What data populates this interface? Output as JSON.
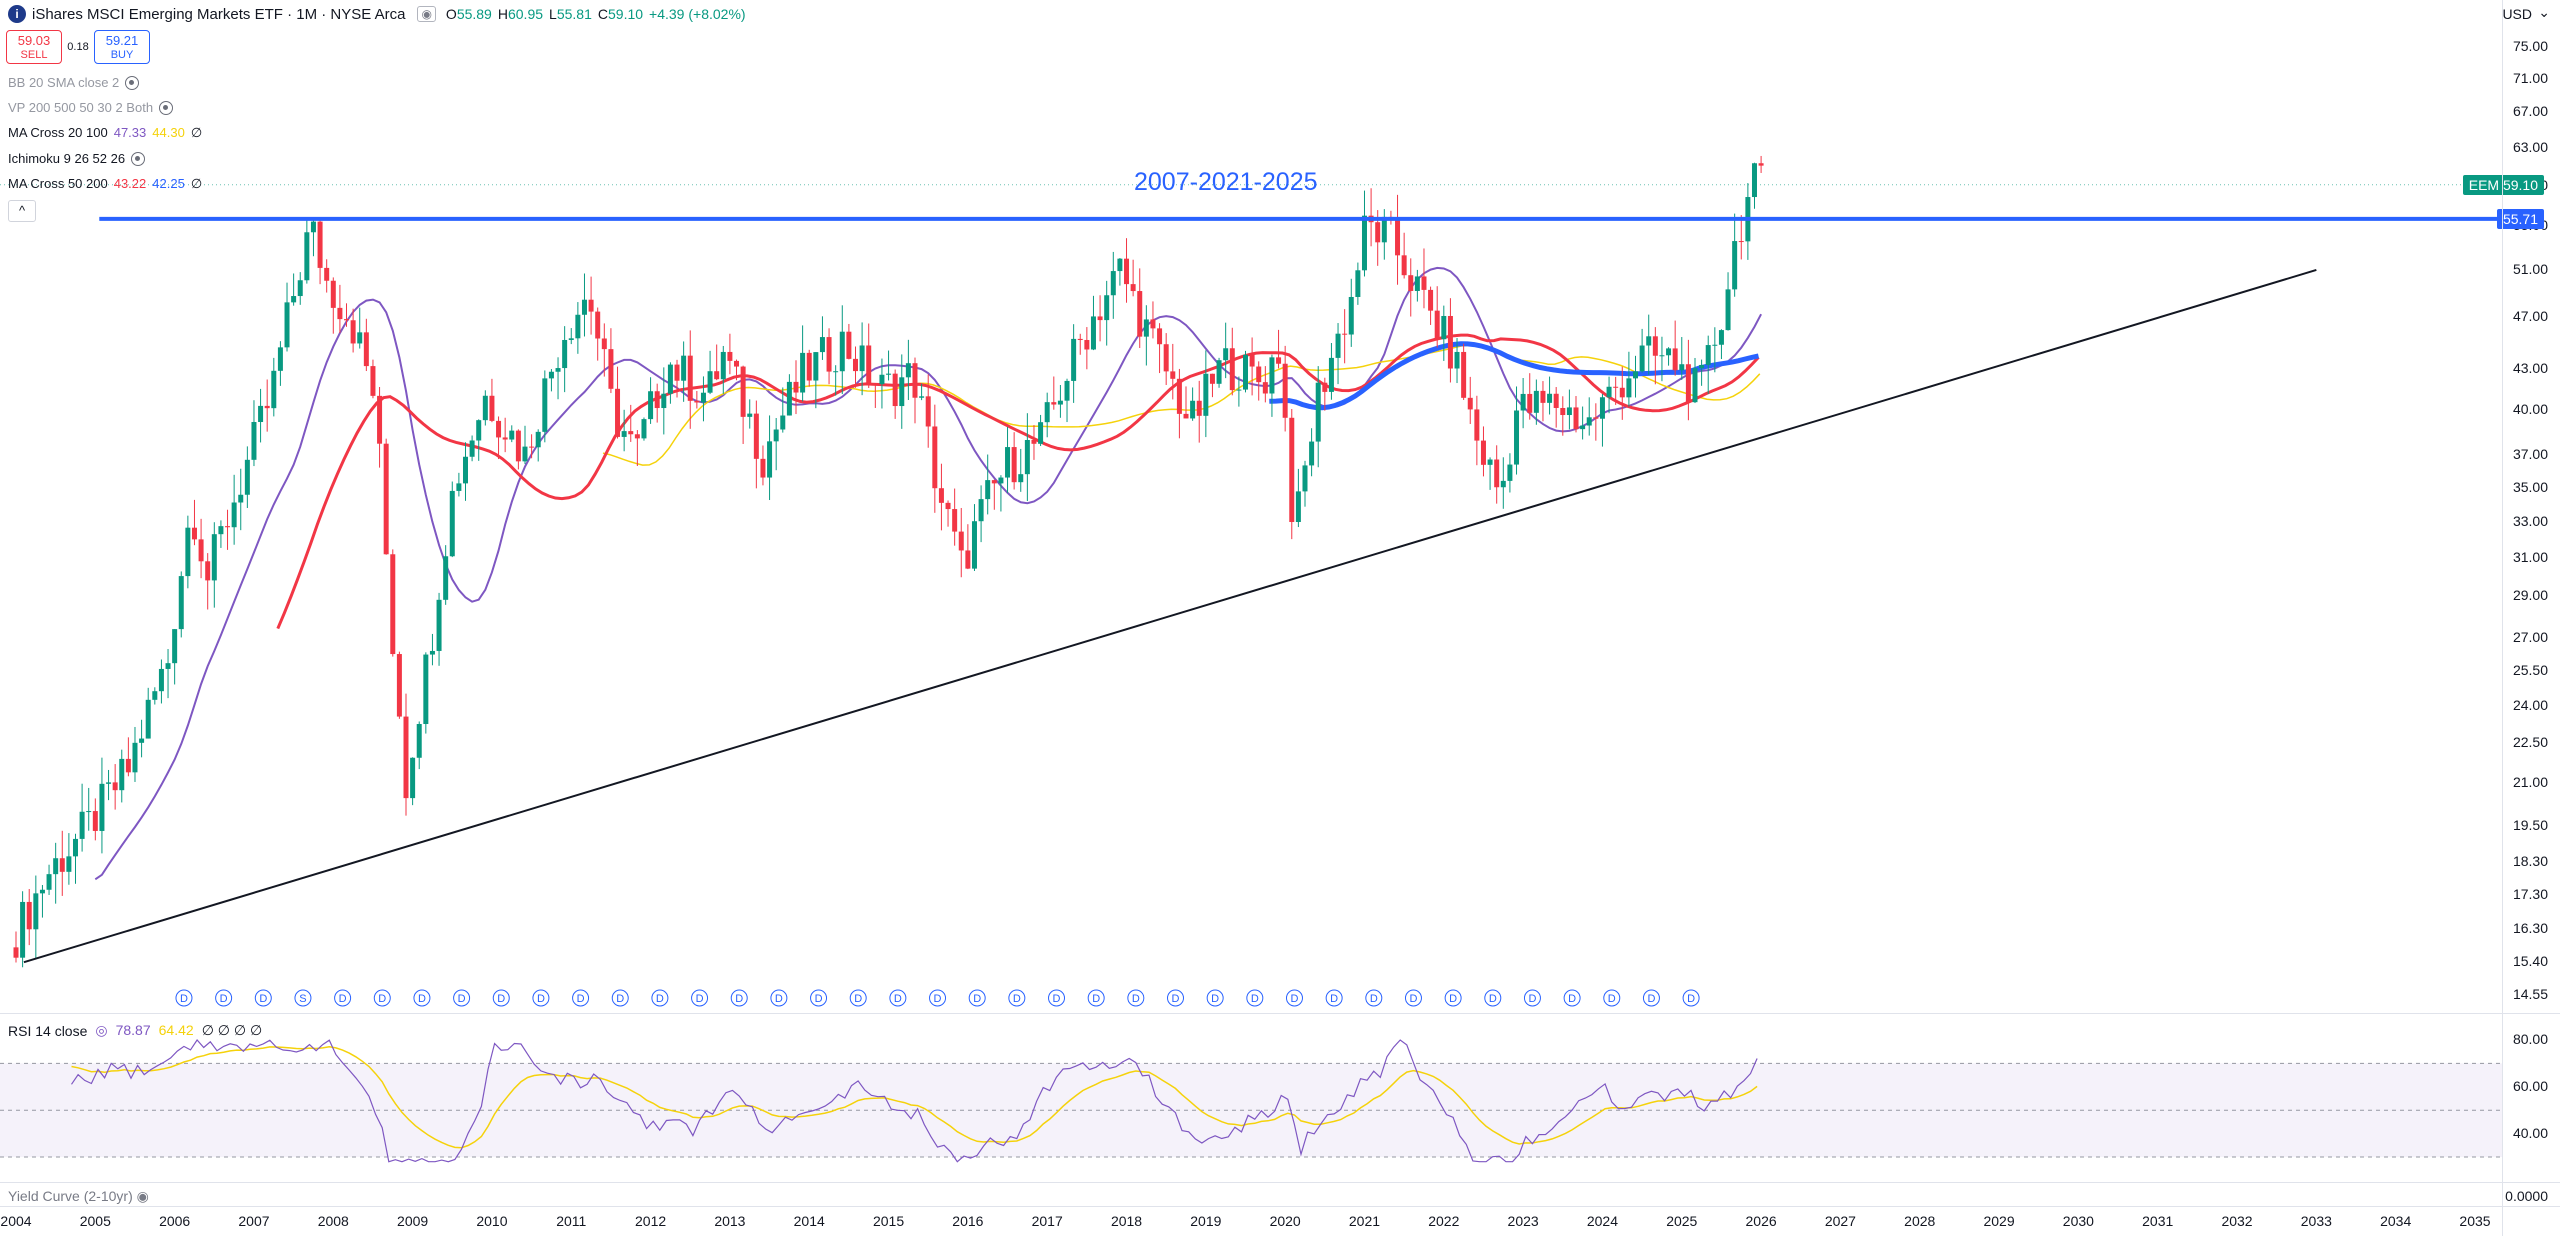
{
  "header": {
    "symbol_icon": "i",
    "title": "iShares MSCI Emerging Markets ETF · 1M · NYSE Arca",
    "ohlc": [
      {
        "k": "O",
        "v": "55.89"
      },
      {
        "k": "H",
        "v": "60.95"
      },
      {
        "k": "L",
        "v": "55.81"
      },
      {
        "k": "C",
        "v": "59.10"
      },
      {
        "k": "",
        "v": "+4.39 (+8.02%)"
      }
    ],
    "currency": "USD"
  },
  "trade": {
    "sell_price": "59.03",
    "sell_label": "SELL",
    "spread": "0.18",
    "buy_price": "59.21",
    "buy_label": "BUY"
  },
  "indicators": [
    {
      "name": "BB 20 SMA close 2",
      "muted": true,
      "values": []
    },
    {
      "name": "VP 200 500 50 30 2 Both",
      "muted": true,
      "values": []
    },
    {
      "name": "MA Cross 20 100",
      "muted": false,
      "values": [
        {
          "t": "47.33",
          "c": "#7e57c2"
        },
        {
          "t": "44.30",
          "c": "#f5d20b"
        },
        {
          "t": "∅",
          "c": "#131722"
        }
      ]
    },
    {
      "name": "Ichimoku 9 26 52 26",
      "muted": false,
      "values": []
    },
    {
      "name": "MA Cross 50 200",
      "muted": false,
      "values": [
        {
          "t": "43.22",
          "c": "#f23645"
        },
        {
          "t": "42.25",
          "c": "#2962ff"
        },
        {
          "t": "∅",
          "c": "#131722"
        }
      ]
    }
  ],
  "collapse_label": "^",
  "annotation": "2007-2021-2025",
  "price_axis": {
    "labels": [
      "75.00",
      "71.00",
      "67.00",
      "63.00",
      "59.00",
      "55.00",
      "51.00",
      "47.00",
      "43.00",
      "40.00",
      "37.00",
      "35.00",
      "33.00",
      "31.00",
      "29.00",
      "27.00",
      "25.50",
      "24.00",
      "22.50",
      "21.00",
      "19.50",
      "18.30",
      "17.30",
      "16.30",
      "15.40",
      "14.55"
    ],
    "badges": [
      {
        "text": "EEM  59.10",
        "value": 59.1,
        "color": "#089981"
      },
      {
        "text": "55.71",
        "value": 55.71,
        "color": "#2962ff"
      }
    ]
  },
  "rsi": {
    "legend_name": "RSI 14 close",
    "legend_values": [
      {
        "t": "78.87",
        "c": "#7e57c2"
      },
      {
        "t": "64.42",
        "c": "#f5d20b"
      },
      {
        "t": "∅ ∅ ∅ ∅",
        "c": "#131722"
      }
    ],
    "axis_labels": [
      "80.00",
      "60.00",
      "40.00"
    ]
  },
  "yield_curve": {
    "legend": "Yield Curve (2-10yr)",
    "axis_label": "0.0000"
  },
  "time_axis": [
    "2004",
    "2005",
    "2006",
    "2007",
    "2008",
    "2009",
    "2010",
    "2011",
    "2012",
    "2013",
    "2014",
    "2015",
    "2016",
    "2017",
    "2018",
    "2019",
    "2020",
    "2021",
    "2022",
    "2023",
    "2024",
    "2025",
    "2026",
    "2027",
    "2028",
    "2029",
    "2030",
    "2031",
    "2032",
    "2033",
    "2034",
    "2035"
  ],
  "dividend_marker_label": "D",
  "split_marker_label": "S",
  "chart_data": {
    "type": "line",
    "title": "iShares MSCI Emerging Markets ETF · 1M · NYSE Arca",
    "scale": "log",
    "ylim": [
      14.55,
      75.0
    ],
    "x_range": [
      2004.0,
      2035.6
    ],
    "series": [
      {
        "name": "EEM",
        "x": [
          2004.0,
          2004.5,
          2005.0,
          2005.5,
          2006.0,
          2006.3,
          2006.5,
          2007.0,
          2007.3,
          2007.8,
          2008.0,
          2008.3,
          2008.6,
          2008.8,
          2009.0,
          2009.3,
          2009.6,
          2010.0,
          2010.5,
          2011.0,
          2011.3,
          2011.6,
          2011.9,
          2012.3,
          2012.8,
          2013.0,
          2013.5,
          2014.0,
          2014.5,
          2015.0,
          2015.4,
          2015.7,
          2016.0,
          2016.3,
          2016.6,
          2017.0,
          2017.5,
          2018.0,
          2018.4,
          2018.9,
          2019.3,
          2019.8,
          2020.0,
          2020.2,
          2020.5,
          2020.9,
          2021.1,
          2021.4,
          2021.8,
          2022.2,
          2022.5,
          2022.8,
          2023.0,
          2023.5,
          2023.9,
          2024.3,
          2024.6,
          2025.0,
          2025.3,
          2025.6,
          2025.8,
          2026.0
        ],
        "y": [
          15.8,
          18.0,
          19.5,
          21.5,
          26.0,
          34.0,
          30.0,
          36.5,
          41.0,
          55.0,
          50.0,
          47.0,
          41.0,
          28.0,
          21.0,
          26.5,
          35.0,
          41.0,
          37.0,
          46.0,
          49.0,
          40.0,
          37.0,
          43.5,
          41.0,
          44.0,
          37.0,
          42.5,
          45.0,
          41.5,
          42.5,
          35.0,
          30.5,
          34.0,
          36.5,
          38.0,
          45.0,
          51.0,
          45.0,
          39.0,
          43.5,
          42.0,
          44.5,
          32.0,
          41.0,
          48.0,
          55.0,
          54.0,
          48.5,
          44.0,
          38.0,
          34.5,
          40.0,
          40.5,
          39.0,
          42.0,
          44.0,
          43.5,
          41.0,
          47.5,
          55.0,
          59.1
        ]
      }
    ],
    "ma_cross_20_100": {
      "ma20": 47.33,
      "ma100": 44.3
    },
    "ma_cross_50_200": {
      "ma50": 43.22,
      "ma200": 42.25
    },
    "resistance": {
      "price": 55.71,
      "x_start": 2005.05,
      "x_end": 2035.6
    },
    "trendline": {
      "x": [
        2004.1,
        2033.0
      ],
      "y": [
        15.4,
        51.0
      ]
    },
    "rsi": {
      "name": "RSI 14 close",
      "rsi": 78.87,
      "sma": 64.42,
      "ylim": [
        25,
        90
      ]
    }
  }
}
